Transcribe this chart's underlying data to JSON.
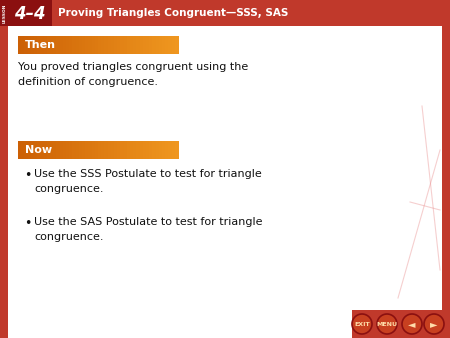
{
  "header_bg": "#c0392b",
  "header_text": "Proving Triangles Congruent—SSS, SAS",
  "header_num": "4–4",
  "slide_bg": "#f0f0f0",
  "then_label": "Then",
  "then_text": "You proved triangles congruent using the\ndefinition of congruence.",
  "now_label": "Now",
  "now_bullets": [
    "Use the SSS Postulate to test for triangle\ncongruence.",
    "Use the SAS Postulate to test for triangle\ncongruence."
  ],
  "orange_dark": "#d4661a",
  "orange_light": "#f0a030",
  "border_color": "#b02020",
  "text_color": "#111111",
  "label_text_color": "#ffffff",
  "red_dark": "#8b1010",
  "red_mid": "#c0392b",
  "bottom_bar_color": "#c0392b",
  "white": "#ffffff",
  "content_bg": "#ffffff",
  "left_accent_color": "#c0392b",
  "right_accent_color": "#c0392b"
}
